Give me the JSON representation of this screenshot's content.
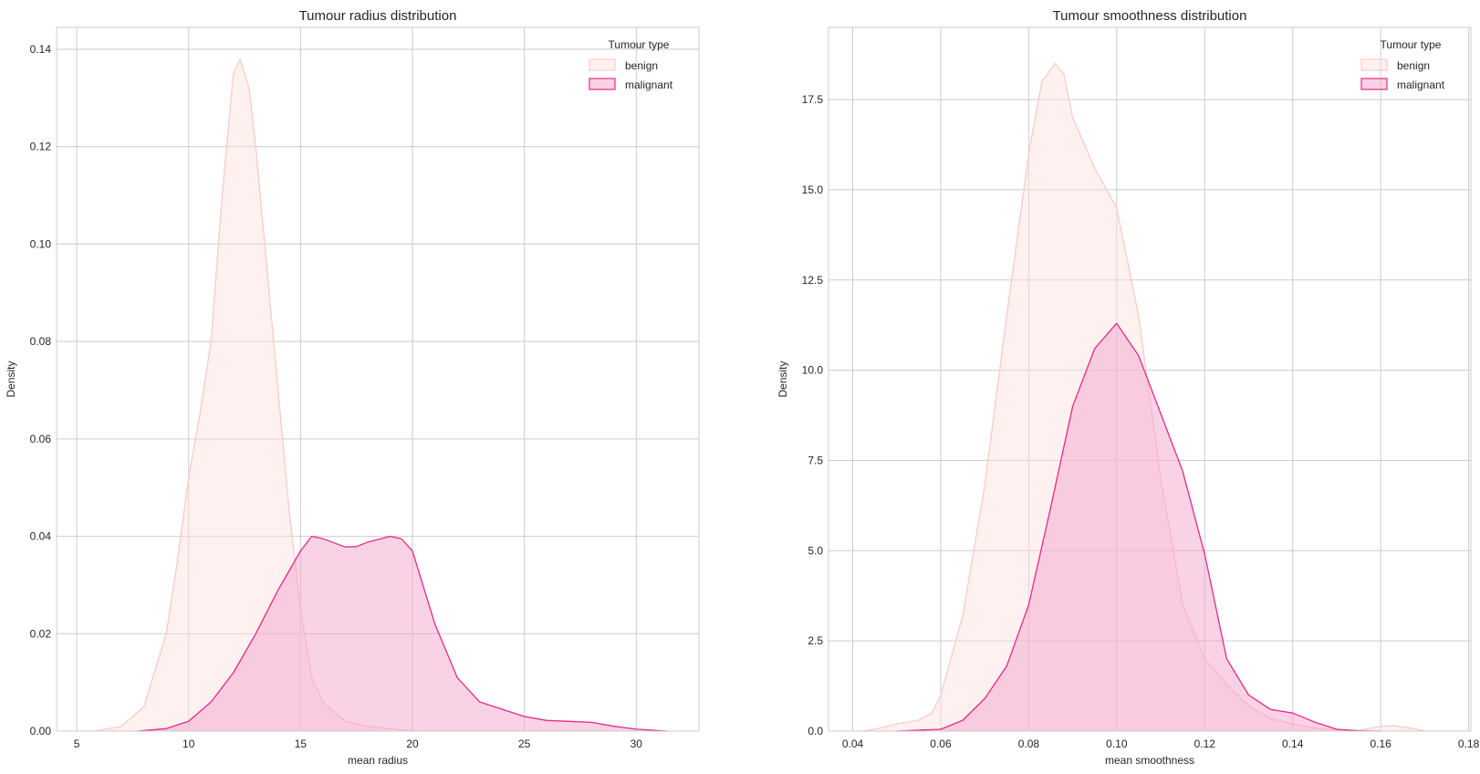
{
  "colors": {
    "benign_fill": "#fde0dd",
    "benign_stroke": "#f9cbc7",
    "malignant_fill": "#f3a5cc",
    "malignant_stroke": "#e7298a",
    "grid": "#cccccc",
    "axes_edge": "#cccccc",
    "text": "#262626"
  },
  "chart_data": [
    {
      "type": "area",
      "subtype": "kde",
      "title": "Tumour radius distribution",
      "xlabel": "mean radius",
      "ylabel": "Density",
      "xlim": [
        4.1,
        32.8
      ],
      "ylim": [
        0,
        0.1445
      ],
      "xticks": [
        5,
        10,
        15,
        20,
        25,
        30
      ],
      "xtick_labels": [
        "5",
        "10",
        "15",
        "20",
        "25",
        "30"
      ],
      "yticks": [
        0,
        0.02,
        0.04,
        0.06,
        0.08,
        0.1,
        0.12,
        0.14
      ],
      "ytick_labels": [
        "0.00",
        "0.02",
        "0.04",
        "0.06",
        "0.08",
        "0.10",
        "0.12",
        "0.14"
      ],
      "grid": true,
      "legend": {
        "title": "Tumour type",
        "placement": "top-right",
        "entries": [
          "benign",
          "malignant"
        ]
      },
      "series": [
        {
          "name": "benign",
          "x": [
            5.8,
            7,
            8,
            9,
            9.5,
            10,
            10.5,
            11,
            11.5,
            12,
            12.3,
            12.7,
            13,
            13.5,
            14,
            14.5,
            15,
            15.5,
            16,
            16.5,
            17,
            18,
            19,
            20
          ],
          "y": [
            0.0,
            0.001,
            0.005,
            0.02,
            0.035,
            0.052,
            0.065,
            0.08,
            0.11,
            0.135,
            0.138,
            0.132,
            0.12,
            0.095,
            0.07,
            0.045,
            0.025,
            0.011,
            0.006,
            0.004,
            0.002,
            0.001,
            0.0005,
            0.0
          ]
        },
        {
          "name": "malignant",
          "x": [
            7.7,
            9,
            10,
            11,
            12,
            13,
            14,
            15,
            15.5,
            16,
            17,
            17.5,
            18,
            19,
            19.5,
            20,
            21,
            22,
            23,
            24,
            25,
            26,
            27,
            28,
            29,
            30,
            31.4
          ],
          "y": [
            0.0,
            0.0005,
            0.002,
            0.006,
            0.012,
            0.02,
            0.029,
            0.037,
            0.04,
            0.0395,
            0.0378,
            0.0379,
            0.0388,
            0.04,
            0.0395,
            0.037,
            0.022,
            0.011,
            0.006,
            0.0045,
            0.003,
            0.0022,
            0.002,
            0.0018,
            0.001,
            0.0004,
            0.0
          ]
        }
      ]
    },
    {
      "type": "area",
      "subtype": "kde",
      "title": "Tumour smoothness distribution",
      "xlabel": "mean smoothness",
      "ylabel": "Density",
      "xlim": [
        0.0345,
        0.1805
      ],
      "ylim": [
        0,
        19.5
      ],
      "xticks": [
        0.04,
        0.06,
        0.08,
        0.1,
        0.12,
        0.14,
        0.16,
        0.18
      ],
      "xtick_labels": [
        "0.04",
        "0.06",
        "0.08",
        "0.10",
        "0.12",
        "0.14",
        "0.16",
        "0.18"
      ],
      "yticks": [
        0,
        2.5,
        5.0,
        7.5,
        10.0,
        12.5,
        15.0,
        17.5
      ],
      "ytick_labels": [
        "0.0",
        "2.5",
        "5.0",
        "7.5",
        "10.0",
        "12.5",
        "15.0",
        "17.5"
      ],
      "grid": true,
      "legend": {
        "title": "Tumour type",
        "placement": "top-right",
        "entries": [
          "benign",
          "malignant"
        ]
      },
      "series": [
        {
          "name": "benign",
          "x": [
            0.042,
            0.045,
            0.05,
            0.055,
            0.058,
            0.06,
            0.065,
            0.07,
            0.075,
            0.08,
            0.083,
            0.086,
            0.088,
            0.09,
            0.095,
            0.1,
            0.105,
            0.11,
            0.115,
            0.12,
            0.125,
            0.13,
            0.135,
            0.14,
            0.145,
            0.15,
            0.155,
            0.16,
            0.163,
            0.167,
            0.17
          ],
          "y": [
            0.0,
            0.05,
            0.2,
            0.3,
            0.5,
            1.0,
            3.2,
            6.8,
            11.5,
            16.0,
            18.0,
            18.5,
            18.2,
            17.0,
            15.6,
            14.5,
            11.5,
            7.0,
            3.5,
            2.0,
            1.3,
            0.7,
            0.35,
            0.2,
            0.08,
            0.03,
            0.02,
            0.13,
            0.15,
            0.08,
            0.0
          ]
        },
        {
          "name": "malignant",
          "x": [
            0.05,
            0.06,
            0.065,
            0.07,
            0.075,
            0.08,
            0.085,
            0.09,
            0.095,
            0.1,
            0.105,
            0.11,
            0.115,
            0.12,
            0.125,
            0.13,
            0.135,
            0.14,
            0.145,
            0.15,
            0.155,
            0.16
          ],
          "y": [
            0.0,
            0.05,
            0.3,
            0.9,
            1.8,
            3.5,
            6.2,
            9.0,
            10.6,
            11.3,
            10.4,
            8.8,
            7.2,
            4.9,
            2.0,
            1.0,
            0.6,
            0.5,
            0.25,
            0.05,
            0.01,
            0.0
          ]
        }
      ]
    }
  ]
}
